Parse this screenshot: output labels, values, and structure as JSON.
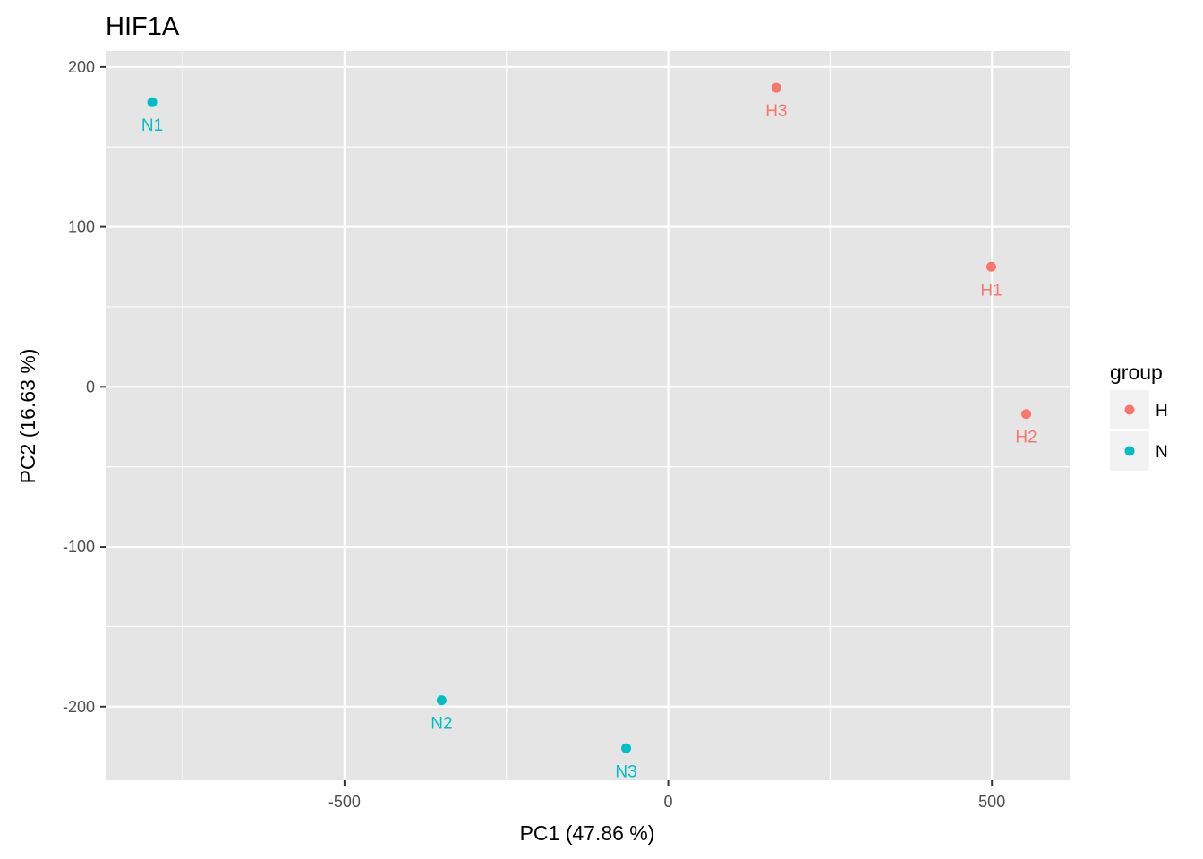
{
  "chart_data": {
    "type": "scatter",
    "title": "HIF1A",
    "xlabel": "PC1 (47.86 %)",
    "ylabel": "PC2 (16.63 %)",
    "xlim": [
      -869,
      620
    ],
    "ylim": [
      -246,
      210
    ],
    "x_major_ticks": [
      -500,
      0,
      500
    ],
    "x_tick_labels": [
      "-500",
      "0",
      "500"
    ],
    "x_minor_ticks": [
      -750,
      -250,
      250
    ],
    "y_major_ticks": [
      -200,
      -100,
      0,
      100,
      200
    ],
    "y_tick_labels": [
      "-200",
      "-100",
      "0",
      "100",
      "200"
    ],
    "y_minor_ticks": [
      -150,
      -50,
      50,
      150
    ],
    "grid": true,
    "panel_background": "#e5e5e5",
    "grid_color": "#ffffff",
    "legend": {
      "title": "group",
      "position": "right",
      "entries": [
        {
          "label": "H",
          "color": "#f8766d"
        },
        {
          "label": "N",
          "color": "#00bfc4"
        }
      ]
    },
    "points": [
      {
        "label": "N1",
        "group": "N",
        "x": -797,
        "y": 178
      },
      {
        "label": "H3",
        "group": "H",
        "x": 167,
        "y": 187
      },
      {
        "label": "H1",
        "group": "H",
        "x": 499,
        "y": 75
      },
      {
        "label": "H2",
        "group": "H",
        "x": 553,
        "y": -17
      },
      {
        "label": "N2",
        "group": "N",
        "x": -350,
        "y": -196
      },
      {
        "label": "N3",
        "group": "N",
        "x": -65,
        "y": -226
      }
    ]
  }
}
